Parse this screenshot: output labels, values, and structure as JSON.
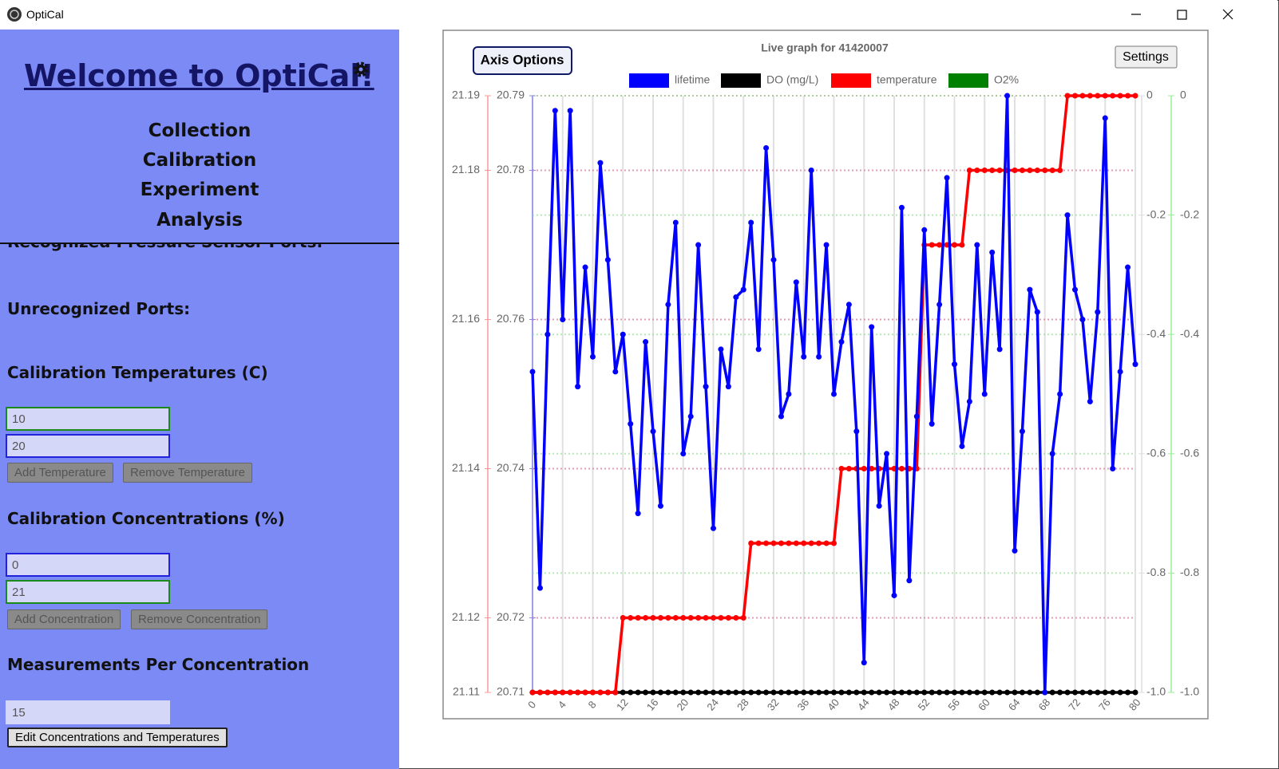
{
  "window": {
    "title": "OptiCal"
  },
  "sidebar": {
    "title": "Welcome to OptiCal!",
    "nav": [
      "Collection",
      "Calibration",
      "Experiment",
      "Analysis"
    ],
    "sections": {
      "pressure_ports": "Recognized Pressure Sensor Ports:",
      "unrecognized_ports": "Unrecognized Ports:",
      "temperatures": {
        "heading": "Calibration Temperatures (C)",
        "inputs": [
          "10",
          "20"
        ],
        "add": "Add Temperature",
        "remove": "Remove Temperature"
      },
      "concentrations": {
        "heading": "Calibration Concentrations (%)",
        "inputs": [
          "0",
          "21"
        ],
        "add": "Add Concentration",
        "remove": "Remove Concentration"
      },
      "measurements": {
        "heading": "Measurements Per Concentration",
        "input": "15",
        "button": "Edit Concentrations and Temperatures"
      }
    }
  },
  "graph_controls": {
    "axis_options": "Axis Options",
    "settings": "Settings"
  },
  "chart_data": {
    "type": "line",
    "title": "Live graph for 41420007",
    "x": [
      0,
      1,
      2,
      3,
      4,
      5,
      6,
      7,
      8,
      9,
      10,
      11,
      12,
      13,
      14,
      15,
      16,
      17,
      18,
      19,
      20,
      21,
      22,
      23,
      24,
      25,
      26,
      27,
      28,
      29,
      30,
      31,
      32,
      33,
      34,
      35,
      36,
      37,
      38,
      39,
      40,
      41,
      42,
      43,
      44,
      45,
      46,
      47,
      48,
      49,
      50,
      51,
      52,
      53,
      54,
      55,
      56,
      57,
      58,
      59,
      60,
      61,
      62,
      63,
      64,
      65,
      66,
      67,
      68,
      69,
      70,
      71,
      72,
      73,
      74,
      75,
      76,
      77,
      78,
      79,
      80
    ],
    "xlim": [
      0,
      80
    ],
    "xticks": [
      0,
      4,
      8,
      12,
      16,
      20,
      24,
      28,
      32,
      36,
      40,
      44,
      48,
      52,
      56,
      60,
      64,
      68,
      72,
      76,
      80
    ],
    "ylim": [
      20.71,
      20.79
    ],
    "yticks": [
      20.71,
      20.72,
      20.74,
      20.76,
      20.78,
      20.79
    ],
    "y3lim": [
      21.11,
      21.19
    ],
    "y3ticks": [
      21.11,
      21.12,
      21.14,
      21.16,
      21.18,
      21.19
    ],
    "y2lim": [
      -1,
      0
    ],
    "y2ticks": [
      0,
      -0.2,
      -0.4,
      -0.6,
      -0.8,
      {
        "value": -1,
        "label": "-1.0"
      }
    ],
    "y4lim": [
      -1,
      0
    ],
    "y4ticks": [
      0,
      -0.2,
      -0.4,
      -0.6,
      -0.8,
      {
        "value": -1,
        "label": "-1.0"
      }
    ],
    "grid": true,
    "series": [
      {
        "name": "lifetime",
        "color": "#0000ff",
        "axis": "y",
        "values": [
          20.753,
          20.724,
          20.758,
          20.788,
          20.76,
          20.788,
          20.751,
          20.767,
          20.755,
          20.781,
          20.768,
          20.753,
          20.758,
          20.746,
          20.734,
          20.757,
          20.745,
          20.735,
          20.762,
          20.773,
          20.742,
          20.747,
          20.77,
          20.751,
          20.732,
          20.756,
          20.751,
          20.763,
          20.764,
          20.773,
          20.756,
          20.783,
          20.768,
          20.747,
          20.75,
          20.765,
          20.755,
          20.78,
          20.755,
          20.77,
          20.75,
          20.757,
          20.762,
          20.745,
          20.714,
          20.759,
          20.735,
          20.742,
          20.723,
          20.775,
          20.725,
          20.747,
          20.772,
          20.746,
          20.762,
          20.779,
          20.754,
          20.743,
          20.749,
          20.77,
          20.75,
          20.769,
          20.756,
          20.79,
          20.729,
          20.745,
          20.764,
          20.761,
          20.71,
          20.742,
          20.75,
          20.774,
          20.764,
          20.76,
          20.749,
          20.761,
          20.787,
          20.74,
          20.753,
          20.767,
          20.754
        ]
      },
      {
        "name": "DO (mg/L)",
        "color": "#000000",
        "axis": "y2",
        "values": [
          -1,
          -1,
          -1,
          -1,
          -1,
          -1,
          -1,
          -1,
          -1,
          -1,
          -1,
          -1,
          -1,
          -1,
          -1,
          -1,
          -1,
          -1,
          -1,
          -1,
          -1,
          -1,
          -1,
          -1,
          -1,
          -1,
          -1,
          -1,
          -1,
          -1,
          -1,
          -1,
          -1,
          -1,
          -1,
          -1,
          -1,
          -1,
          -1,
          -1,
          -1,
          -1,
          -1,
          -1,
          -1,
          -1,
          -1,
          -1,
          -1,
          -1,
          -1,
          -1,
          -1,
          -1,
          -1,
          -1,
          -1,
          -1,
          -1,
          -1,
          -1,
          -1,
          -1,
          -1,
          -1,
          -1,
          -1,
          -1,
          -1,
          -1,
          -1,
          -1,
          -1,
          -1,
          -1,
          -1,
          -1,
          -1,
          -1,
          -1,
          -1
        ]
      },
      {
        "name": "temperature",
        "color": "#ff0000",
        "axis": "y3",
        "values": [
          21.11,
          21.11,
          21.11,
          21.11,
          21.11,
          21.11,
          21.11,
          21.11,
          21.11,
          21.11,
          21.11,
          21.11,
          21.12,
          21.12,
          21.12,
          21.12,
          21.12,
          21.12,
          21.12,
          21.12,
          21.12,
          21.12,
          21.12,
          21.12,
          21.12,
          21.12,
          21.12,
          21.12,
          21.12,
          21.13,
          21.13,
          21.13,
          21.13,
          21.13,
          21.13,
          21.13,
          21.13,
          21.13,
          21.13,
          21.13,
          21.13,
          21.14,
          21.14,
          21.14,
          21.14,
          21.14,
          21.14,
          21.14,
          21.14,
          21.14,
          21.14,
          21.14,
          21.17,
          21.17,
          21.17,
          21.17,
          21.17,
          21.17,
          21.18,
          21.18,
          21.18,
          21.18,
          21.18,
          21.18,
          21.18,
          21.18,
          21.18,
          21.18,
          21.18,
          21.18,
          21.18,
          21.19,
          21.19,
          21.19,
          21.19,
          21.19,
          21.19,
          21.19,
          21.19,
          21.19,
          21.19
        ]
      },
      {
        "name": "O2%",
        "color": "#008000",
        "axis": "y4",
        "values": [
          null,
          null,
          null,
          null,
          null,
          null,
          null,
          null,
          null,
          null,
          null,
          null,
          null,
          null,
          null,
          null,
          null,
          null,
          null,
          null,
          null,
          null,
          null,
          null,
          null,
          null,
          null,
          null,
          null,
          null,
          null,
          null,
          null,
          null,
          null,
          null,
          null,
          null,
          null,
          null,
          null,
          null,
          null,
          null,
          null,
          null,
          null,
          null,
          null,
          null,
          null,
          null,
          null,
          null,
          null,
          null,
          null,
          null,
          null,
          null,
          null,
          null,
          null,
          null,
          null,
          null,
          null,
          null,
          null,
          null,
          null,
          null,
          null,
          null,
          null,
          null,
          null,
          null,
          null,
          null,
          null
        ]
      }
    ]
  }
}
